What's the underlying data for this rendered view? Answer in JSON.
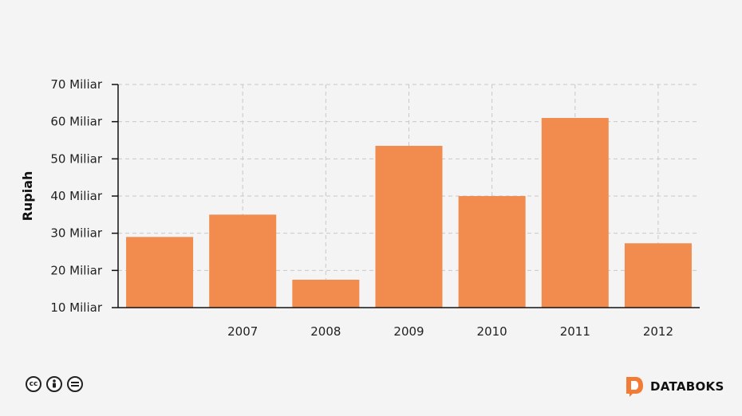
{
  "colors": {
    "bar": "#f28b4e",
    "axis": "#111111",
    "grid": "#c8c8c8",
    "brand": "#f27b35"
  },
  "chart_data": {
    "type": "bar",
    "ylabel": "Rupiah",
    "categories": [
      "",
      "2007",
      "2008",
      "2009",
      "2010",
      "2011",
      "2012"
    ],
    "values": [
      29,
      35,
      17.5,
      53.5,
      40,
      61,
      27.3
    ],
    "ylim": [
      10,
      70
    ],
    "yticks": [
      10,
      20,
      30,
      40,
      50,
      60,
      70
    ],
    "ytick_labels": [
      "10 Miliar",
      "20 Miliar",
      "30 Miliar",
      "40 Miliar",
      "50 Miliar",
      "60 Miliar",
      "70 Miliar"
    ],
    "grid": true
  },
  "footer": {
    "license_icons": [
      "creative-commons-icon",
      "attribution-icon",
      "no-derivatives-icon"
    ],
    "brand": "DATABOKS"
  }
}
